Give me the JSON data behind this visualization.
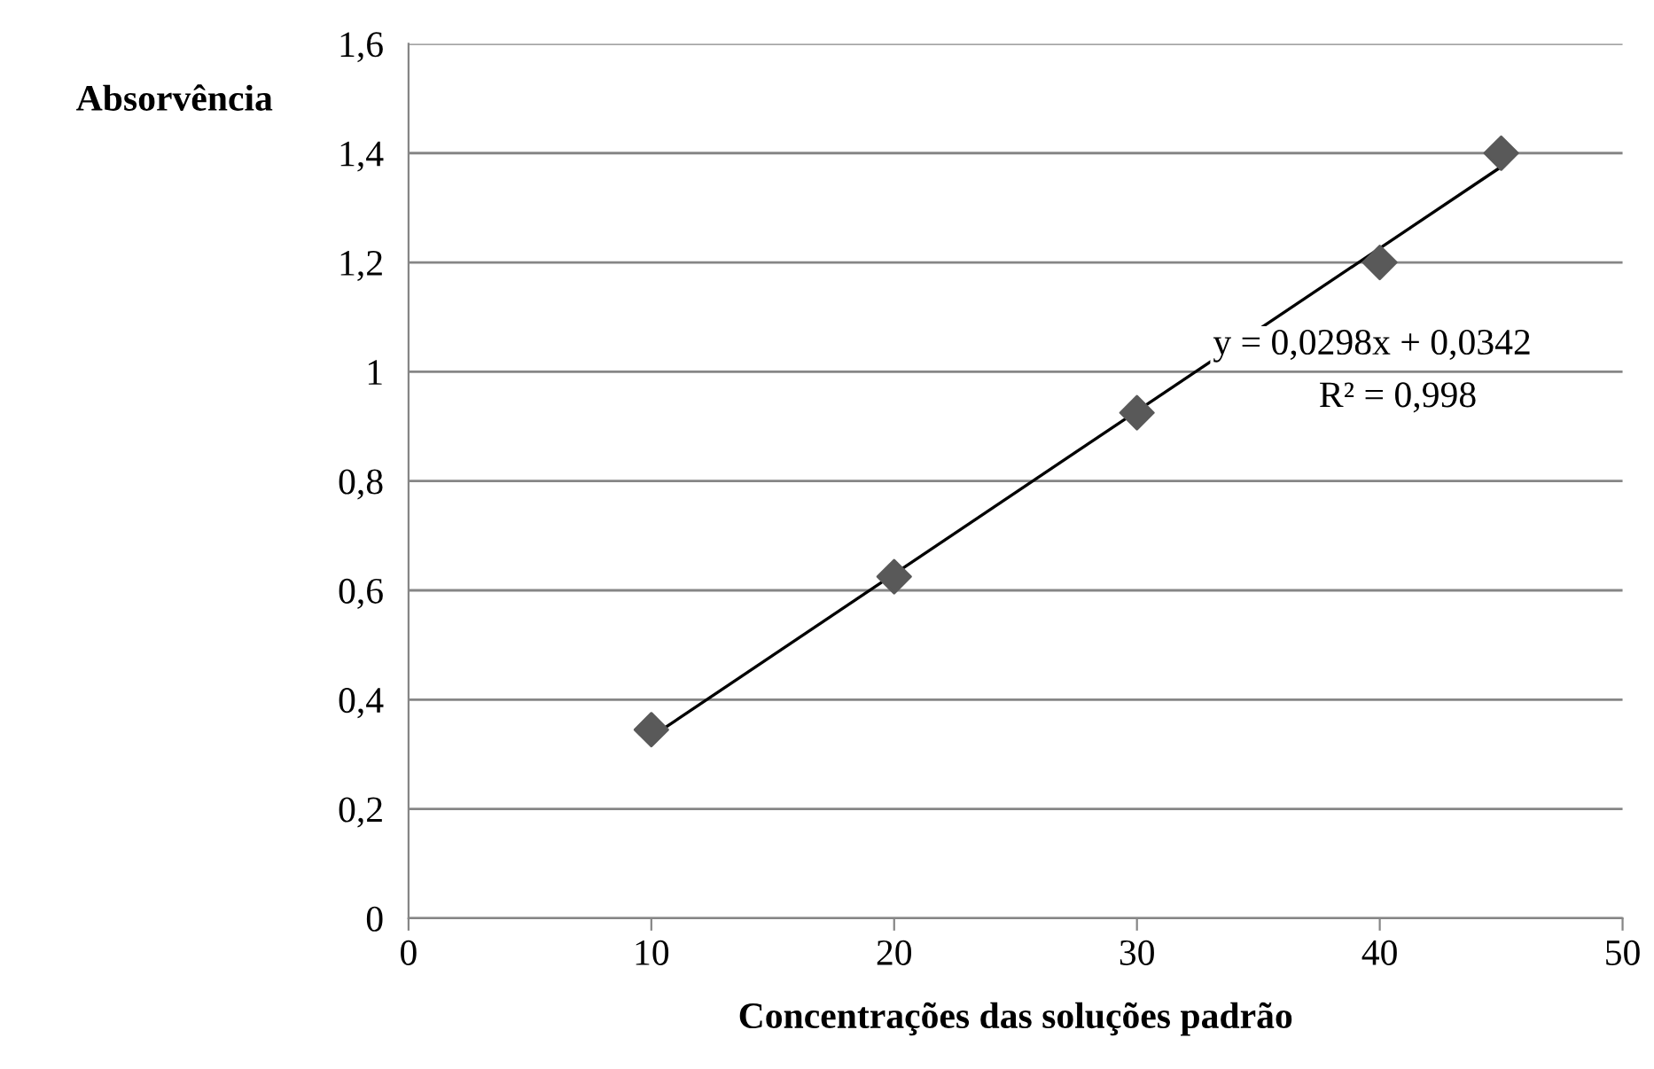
{
  "chart_data": {
    "type": "scatter",
    "xlabel": "Concentrações das soluções padrão",
    "ylabel": "Absorvência",
    "xlim": [
      0,
      50
    ],
    "xticks": [
      0,
      10,
      20,
      30,
      40,
      50
    ],
    "ylim": [
      0,
      1.6
    ],
    "yticks": [
      0,
      {
        "value": 0.2,
        "label": "0,2"
      },
      {
        "value": 0.4,
        "label": "0,4"
      },
      {
        "value": 0.6,
        "label": "0,6"
      },
      {
        "value": 0.8,
        "label": "0,8"
      },
      1,
      {
        "value": 1.2,
        "label": "1,2"
      },
      {
        "value": 1.4,
        "label": "1,4"
      },
      {
        "value": 1.6,
        "label": "1,6"
      }
    ],
    "grid": "y",
    "legend": false,
    "series": [
      {
        "color": "#595959",
        "marker": "diamond",
        "x": [
          10,
          20,
          30,
          40,
          45
        ],
        "values": [
          0.345,
          0.625,
          0.925,
          1.2,
          1.4
        ]
      },
      {
        "type": "line",
        "color": "#000000",
        "marker": "none",
        "line_style": "solid",
        "x": [
          10,
          45
        ],
        "values": [
          0.332,
          1.375
        ]
      }
    ],
    "annotations": [
      "y = 0,0298x + 0,0342",
      "R² = 0,998"
    ]
  }
}
